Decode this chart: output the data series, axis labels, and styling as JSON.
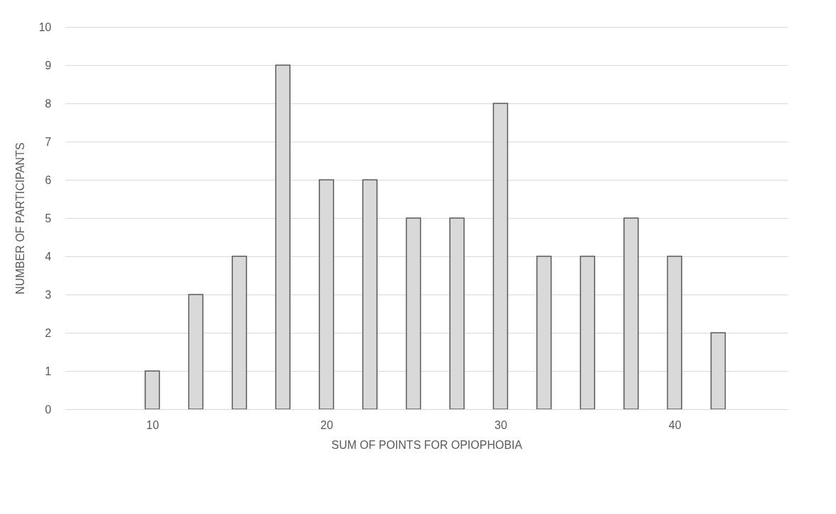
{
  "chart_data": {
    "type": "bar",
    "xlabel": "SUM OF POINTS FOR OPIOPHOBIA",
    "ylabel": "NUMBER OF PARTICIPANTS",
    "x": [
      10,
      12.5,
      15,
      17.5,
      20,
      22.5,
      25,
      27.5,
      30,
      32.5,
      35,
      37.5,
      40,
      42.5
    ],
    "series": [
      {
        "color": "#d9d9d9",
        "values": [
          1,
          3,
          4,
          9,
          6,
          6,
          5,
          5,
          8,
          4,
          4,
          5,
          4,
          2
        ]
      }
    ],
    "xlim": [
      5.2,
      46.3
    ],
    "xticks": [
      10,
      20,
      30,
      40
    ],
    "ylim": [
      0,
      10
    ],
    "yticks": [
      0,
      1,
      2,
      3,
      4,
      5,
      6,
      7,
      8,
      9,
      10
    ],
    "grid": "y"
  }
}
